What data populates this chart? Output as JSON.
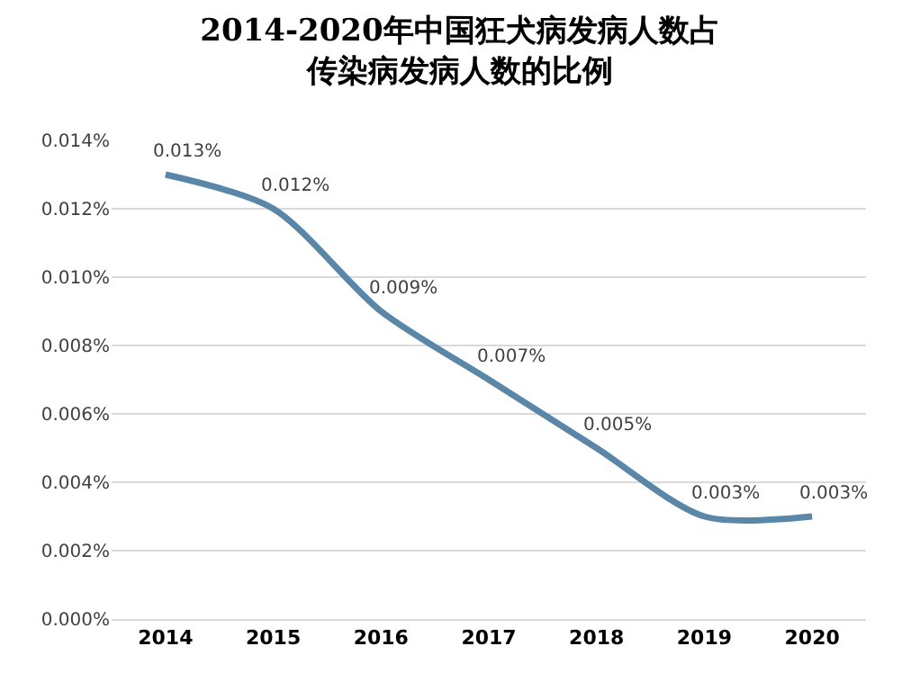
{
  "chart_data": {
    "type": "line",
    "title": "2014-2020年中国狂犬病发病人数占传染病发病人数的比例",
    "categories": [
      "2014",
      "2015",
      "2016",
      "2017",
      "2018",
      "2019",
      "2020"
    ],
    "series": [
      {
        "color": "#5a87a8",
        "values": [
          0.013,
          0.012,
          0.009,
          0.007,
          0.005,
          0.003,
          0.003
        ],
        "value_labels": [
          "0.013%",
          "0.012%",
          "0.009%",
          "0.007%",
          "0.005%",
          "0.003%",
          "0.003%"
        ]
      }
    ],
    "ylim": [
      0,
      0.014
    ],
    "yticks": [
      {
        "value": 0,
        "label": "0.000%"
      },
      {
        "value": 0.002,
        "label": "0.002%"
      },
      {
        "value": 0.004,
        "label": "0.004%"
      },
      {
        "value": 0.006,
        "label": "0.006%"
      },
      {
        "value": 0.008,
        "label": "0.008%"
      },
      {
        "value": 0.01,
        "label": "0.010%"
      },
      {
        "value": 0.012,
        "label": "0.012%"
      },
      {
        "value": 0.014,
        "label": "0.014%"
      }
    ],
    "grid": "y",
    "marker": "none",
    "line_style": "solid"
  }
}
